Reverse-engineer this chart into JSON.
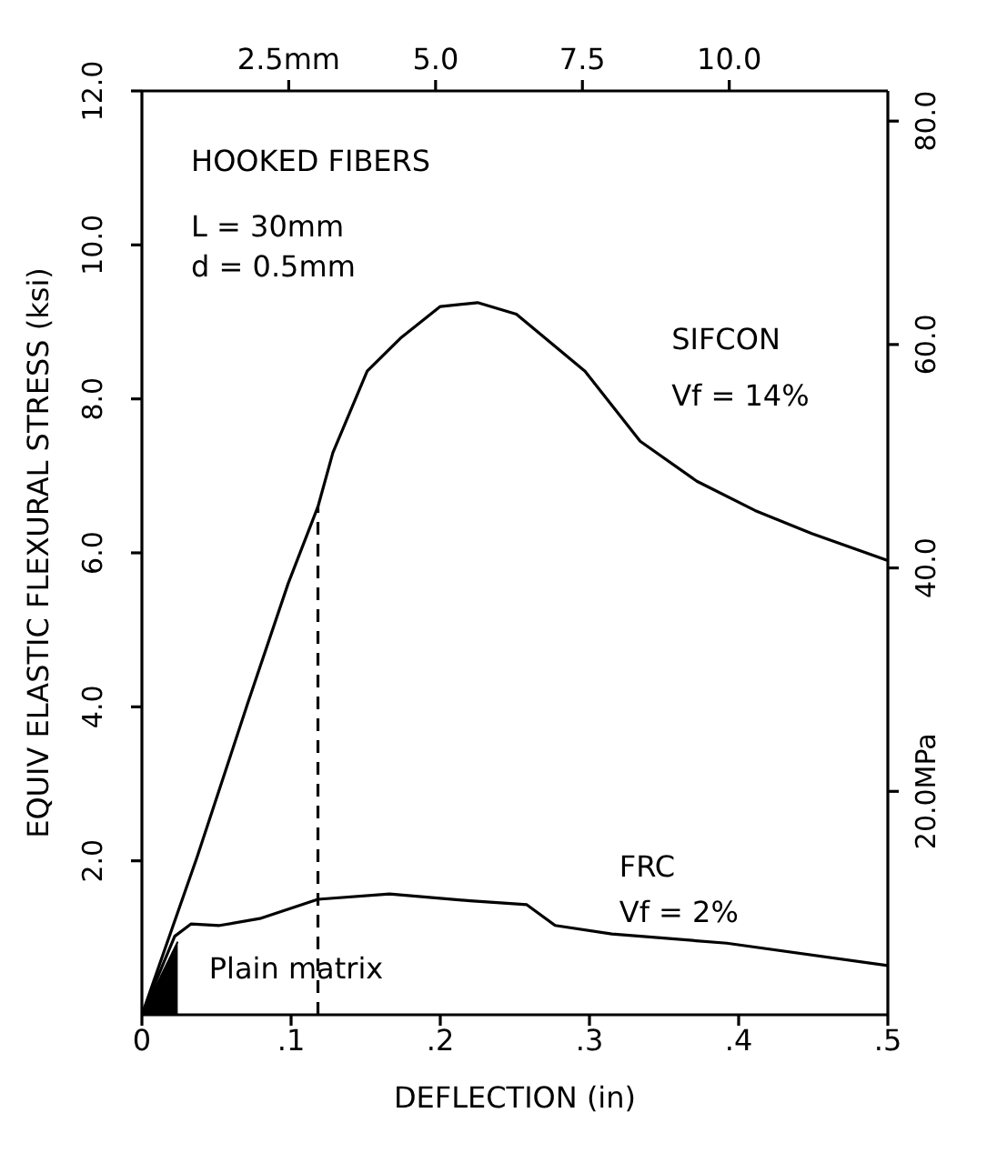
{
  "chart_data": {
    "type": "line",
    "xlabel": "DEFLECTION (in)",
    "ylabel": "EQUIV ELASTIC FLEXURAL STRESS (ksi)",
    "annotations": [
      "HOOKED FIBERS",
      "L = 30mm",
      "d = 0.5mm",
      "Vf = 14%",
      "Vf = 2%",
      "Plain matrix"
    ],
    "xlim": [
      0,
      0.5
    ],
    "xticks": [
      {
        "value": 0,
        "label": "0"
      },
      {
        "value": 0.1,
        "label": ".1"
      },
      {
        "value": 0.2,
        "label": ".2"
      },
      {
        "value": 0.3,
        "label": ".3"
      },
      {
        "value": 0.4,
        "label": ".4"
      },
      {
        "value": 0.5,
        "label": ".5"
      }
    ],
    "ylim": [
      0,
      12
    ],
    "yticks": [
      {
        "value": 2,
        "label": "2.0"
      },
      {
        "value": 4,
        "label": "4.0"
      },
      {
        "value": 6,
        "label": "6.0"
      },
      {
        "value": 8,
        "label": "8.0"
      },
      {
        "value": 10,
        "label": "10.0"
      },
      {
        "value": 12,
        "label": "12.0"
      }
    ],
    "x2lim": [
      0,
      12.7
    ],
    "x2ticks": [
      {
        "value": 2.5,
        "label": "2.5mm"
      },
      {
        "value": 5,
        "label": "5.0"
      },
      {
        "value": 7.5,
        "label": "7.5"
      },
      {
        "value": 10,
        "label": "10.0"
      }
    ],
    "y2lim": [
      0,
      82.7
    ],
    "y2ticks": [
      {
        "value": 20,
        "label": "20.0MPa"
      },
      {
        "value": 40,
        "label": "40.0"
      },
      {
        "value": 60,
        "label": "60.0"
      },
      {
        "value": 80,
        "label": "80.0"
      }
    ],
    "grid": false,
    "legend": false,
    "marker": "none",
    "series": [
      {
        "name": "SIFCON",
        "color": "#000000",
        "x": [
          0,
          0.037,
          0.071,
          0.098,
          0.118,
          0.128,
          0.151,
          0.174,
          0.2,
          0.225,
          0.251,
          0.297,
          0.334,
          0.372,
          0.411,
          0.449,
          0.5
        ],
        "values": [
          0,
          2.05,
          4.05,
          5.6,
          6.6,
          7.3,
          8.36,
          8.8,
          9.2,
          9.25,
          9.1,
          8.36,
          7.45,
          6.93,
          6.55,
          6.25,
          5.9
        ]
      },
      {
        "name": "FRC",
        "color": "#000000",
        "x": [
          0,
          0.022,
          0.033,
          0.052,
          0.079,
          0.118,
          0.166,
          0.22,
          0.258,
          0.277,
          0.315,
          0.392,
          0.5
        ],
        "values": [
          0,
          1.02,
          1.18,
          1.16,
          1.25,
          1.5,
          1.57,
          1.48,
          1.43,
          1.16,
          1.05,
          0.93,
          0.64
        ]
      },
      {
        "type": "area",
        "color": "#000000",
        "x": [
          0,
          0.024
        ],
        "values": [
          0,
          0.95
        ]
      },
      {
        "type": "line",
        "color": "#000000",
        "line_style": "dashed",
        "x": [
          0.118,
          0.118
        ],
        "values": [
          0,
          6.6
        ]
      }
    ]
  }
}
